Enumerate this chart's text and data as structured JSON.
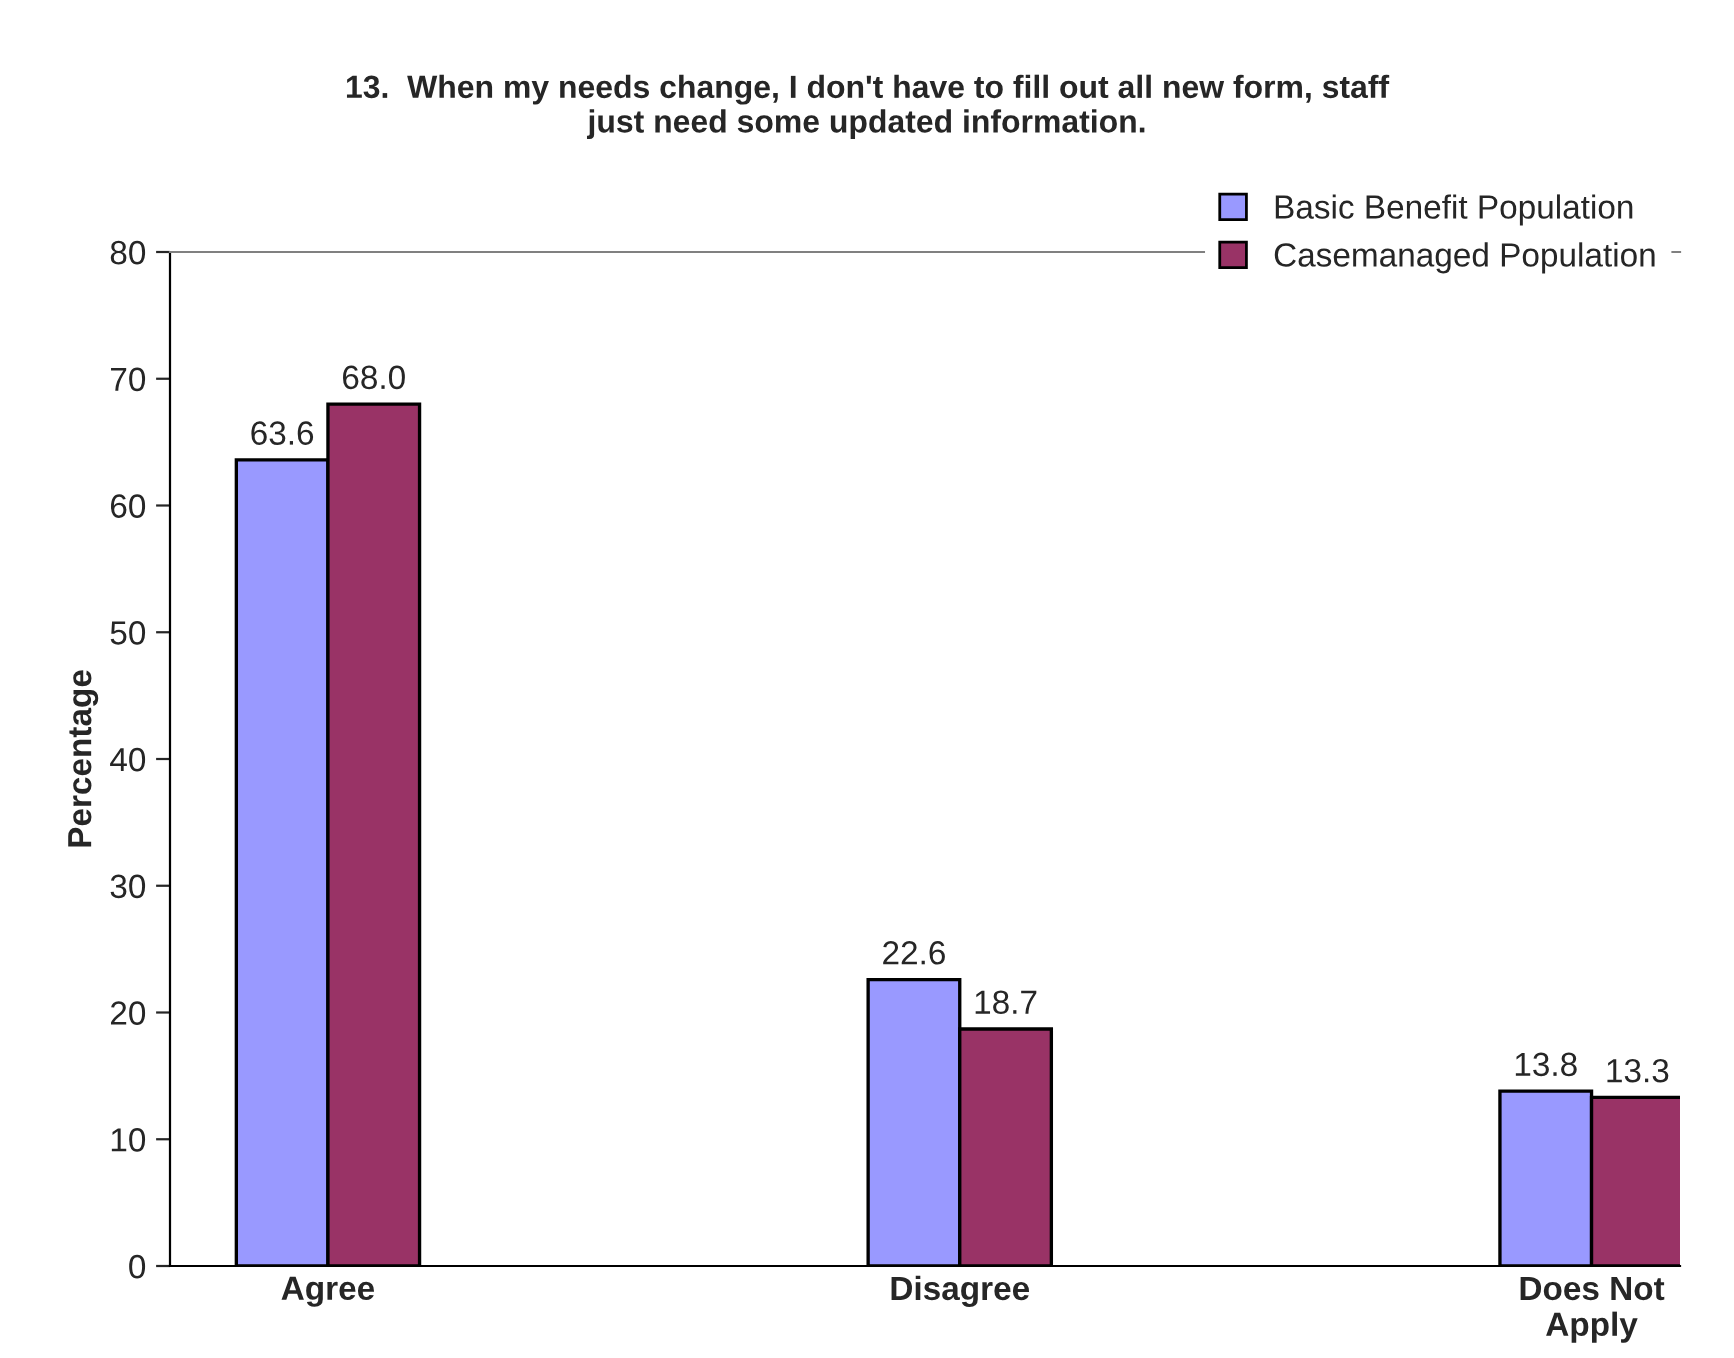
{
  "chart_data": {
    "type": "bar",
    "title": "13.  When my needs change, I don't have to fill out all new form, staff\njust need some updated information.",
    "ylabel": "Percentage",
    "categories": [
      "Agree",
      "Disagree",
      "Does Not\nApply"
    ],
    "series": [
      {
        "name": "Basic Benefit Population",
        "color": "#9999ff",
        "values": [
          63.6,
          22.6,
          13.8
        ],
        "value_labels": [
          "63.6",
          "22.6",
          "13.8"
        ]
      },
      {
        "name": "Casemanaged Population",
        "color": "#993366",
        "values": [
          68.0,
          18.7,
          13.3
        ],
        "value_labels": [
          "68.0",
          "18.7",
          "13.3"
        ]
      }
    ],
    "ylim": [
      0,
      80
    ],
    "yticks": [
      0,
      10,
      20,
      30,
      40,
      50,
      60,
      70,
      80
    ],
    "grid": false,
    "legend": "top right"
  }
}
